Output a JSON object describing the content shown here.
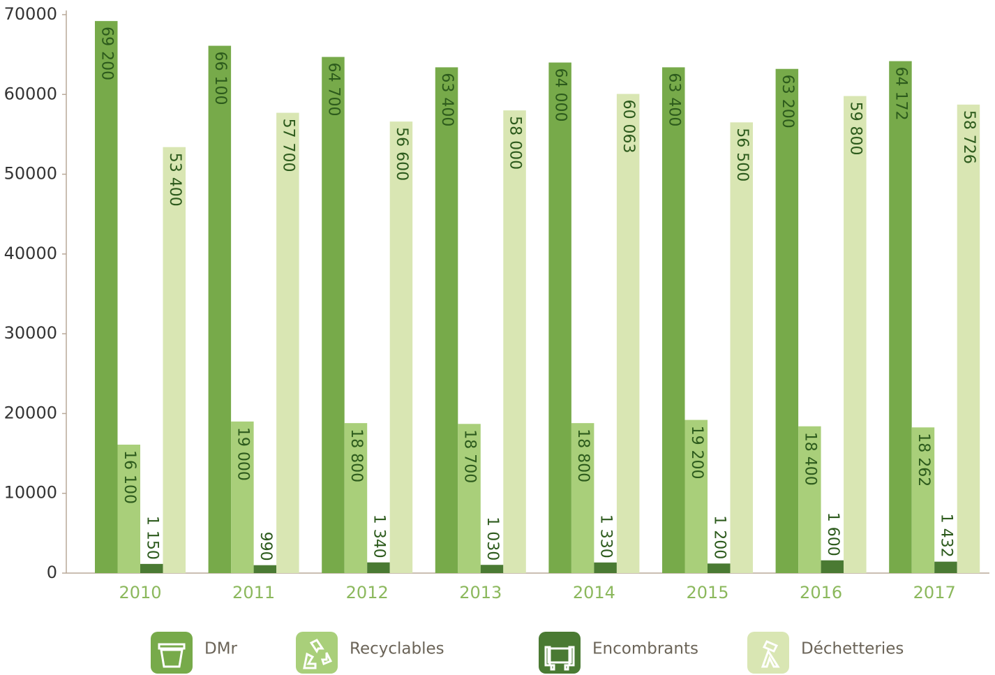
{
  "chart_data": {
    "type": "bar",
    "categories": [
      "2010",
      "2011",
      "2012",
      "2013",
      "2014",
      "2015",
      "2016",
      "2017"
    ],
    "series": [
      {
        "name": "DMr",
        "color": "#77aa4a",
        "values": [
          69200,
          66100,
          64700,
          63400,
          64000,
          63400,
          63200,
          64172
        ],
        "value_labels": [
          "69 200",
          "66 100",
          "64 700",
          "63 400",
          "64 000",
          "63 400",
          "63 200",
          "64 172"
        ]
      },
      {
        "name": "Recyclables",
        "color": "#a9cf7a",
        "values": [
          16100,
          19000,
          18800,
          18700,
          18800,
          19200,
          18400,
          18262
        ],
        "value_labels": [
          "16 100",
          "19 000",
          "18 800",
          "18 700",
          "18 800",
          "19 200",
          "18 400",
          "18 262"
        ]
      },
      {
        "name": "Encombrants",
        "color": "#4a7a33",
        "values": [
          1150,
          990,
          1340,
          1030,
          1330,
          1200,
          1600,
          1432
        ],
        "value_labels": [
          "1 150",
          "990",
          "1 340",
          "1 030",
          "1 330",
          "1 200",
          "1 600",
          "1 432"
        ]
      },
      {
        "name": "Déchetteries",
        "color": "#d9e6b3",
        "values": [
          53400,
          57700,
          56600,
          58000,
          60063,
          56500,
          59800,
          58726
        ],
        "value_labels": [
          "53 400",
          "57 700",
          "56 600",
          "58 000",
          "60 063",
          "56 500",
          "59 800",
          "58 726"
        ]
      }
    ],
    "ylim": [
      0,
      70000
    ],
    "yticks": [
      0,
      10000,
      20000,
      30000,
      40000,
      50000,
      60000,
      70000
    ],
    "grid": false
  }
}
